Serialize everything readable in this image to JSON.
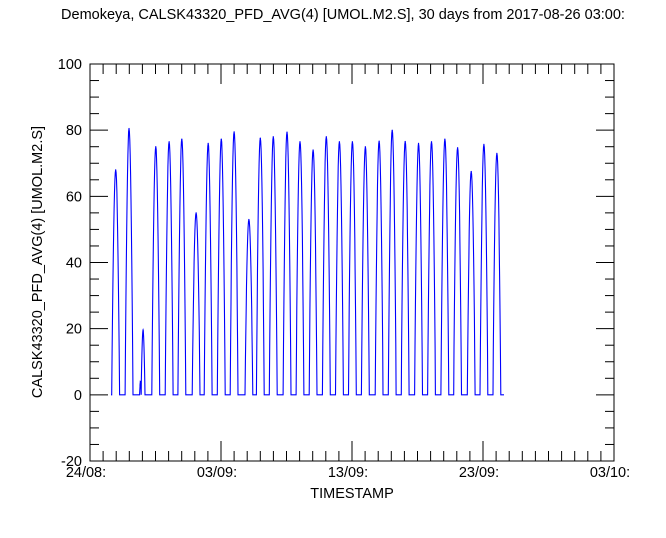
{
  "chart_data": {
    "type": "line",
    "title": "Demokeya, CALSK43320_PFD_AVG(4) [UMOL.M2.S], 30 days from  2017-08-26 03:00:",
    "xlabel": "TIMESTAMP",
    "ylabel": "CALSK43320_PFD_AVG(4) [UMOL.M2.S]",
    "ylim": [
      -20,
      100
    ],
    "yticks": [
      -20,
      0,
      20,
      40,
      60,
      80,
      100
    ],
    "xlim_days": [
      0,
      40
    ],
    "xticks": [
      {
        "day": 0,
        "label": "24/08:"
      },
      {
        "day": 10,
        "label": "03/09:"
      },
      {
        "day": 20,
        "label": "13/09:"
      },
      {
        "day": 30,
        "label": "23/09:"
      },
      {
        "day": 40,
        "label": "03/10:"
      }
    ],
    "x_unit": "days since 24/08 00:00",
    "grid": false,
    "series_color": "#0000ff",
    "data_start_day": 1.6,
    "data_end_day": 31.6,
    "series": [
      {
        "name": "CALSK43320_PFD_AVG(4)",
        "daily_peaks": [
          {
            "day": 1.96,
            "value": 68
          },
          {
            "day": 2.98,
            "value": 80.5
          },
          {
            "day": 3.85,
            "value": 4
          },
          {
            "day": 4.05,
            "value": 19.6
          },
          {
            "day": 5.02,
            "value": 75
          },
          {
            "day": 6.04,
            "value": 76.5
          },
          {
            "day": 7.01,
            "value": 77.3
          },
          {
            "day": 8.1,
            "value": 55
          },
          {
            "day": 9.02,
            "value": 76
          },
          {
            "day": 10.02,
            "value": 77.3
          },
          {
            "day": 11.0,
            "value": 79.5
          },
          {
            "day": 12.13,
            "value": 53
          },
          {
            "day": 13.0,
            "value": 77.6
          },
          {
            "day": 13.99,
            "value": 78
          },
          {
            "day": 15.04,
            "value": 79.4
          },
          {
            "day": 16.03,
            "value": 76.5
          },
          {
            "day": 17.03,
            "value": 74
          },
          {
            "day": 18.04,
            "value": 78
          },
          {
            "day": 19.04,
            "value": 76.5
          },
          {
            "day": 20.03,
            "value": 76.5
          },
          {
            "day": 21.02,
            "value": 75
          },
          {
            "day": 22.07,
            "value": 76.7
          },
          {
            "day": 23.07,
            "value": 80
          },
          {
            "day": 24.06,
            "value": 76.6
          },
          {
            "day": 25.08,
            "value": 76
          },
          {
            "day": 26.07,
            "value": 76.5
          },
          {
            "day": 27.09,
            "value": 77.3
          },
          {
            "day": 28.06,
            "value": 74.7
          },
          {
            "day": 29.1,
            "value": 67.5
          },
          {
            "day": 30.07,
            "value": 75.7
          },
          {
            "day": 31.06,
            "value": 73
          }
        ]
      }
    ]
  }
}
